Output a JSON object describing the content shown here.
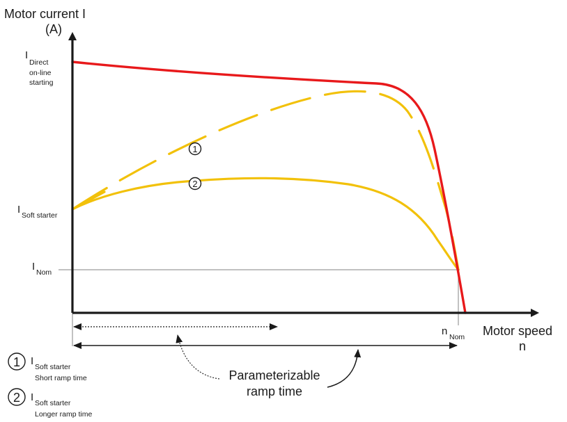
{
  "y_axis": {
    "title_line1": "Motor current I",
    "title_line2": "(A)"
  },
  "x_axis": {
    "title_line1": "Motor speed",
    "title_line2": "n"
  },
  "levels": {
    "direct": {
      "symbol": "I",
      "sub": "Direct",
      "line2": "on-line",
      "line3": "starting"
    },
    "soft": {
      "symbol": "I",
      "sub": "Soft starter"
    },
    "nom": {
      "symbol": "I",
      "sub": "Nom"
    },
    "n_nom": {
      "symbol": "n",
      "sub": "Nom"
    }
  },
  "ramp": {
    "line1": "Parameterizable",
    "line2": "ramp time"
  },
  "markers": {
    "m1": "1",
    "m2": "2"
  },
  "legend": [
    {
      "num": "1",
      "symbol": "I",
      "sub": "Soft starter",
      "desc": "Short ramp time"
    },
    {
      "num": "2",
      "symbol": "I",
      "sub": "Soft starter",
      "desc": "Longer ramp time"
    }
  ],
  "colors": {
    "direct_curve": "#e8191b",
    "soft_curve": "#f2c10a",
    "axis": "#1a1a1a",
    "guide": "#9a9a9a"
  }
}
